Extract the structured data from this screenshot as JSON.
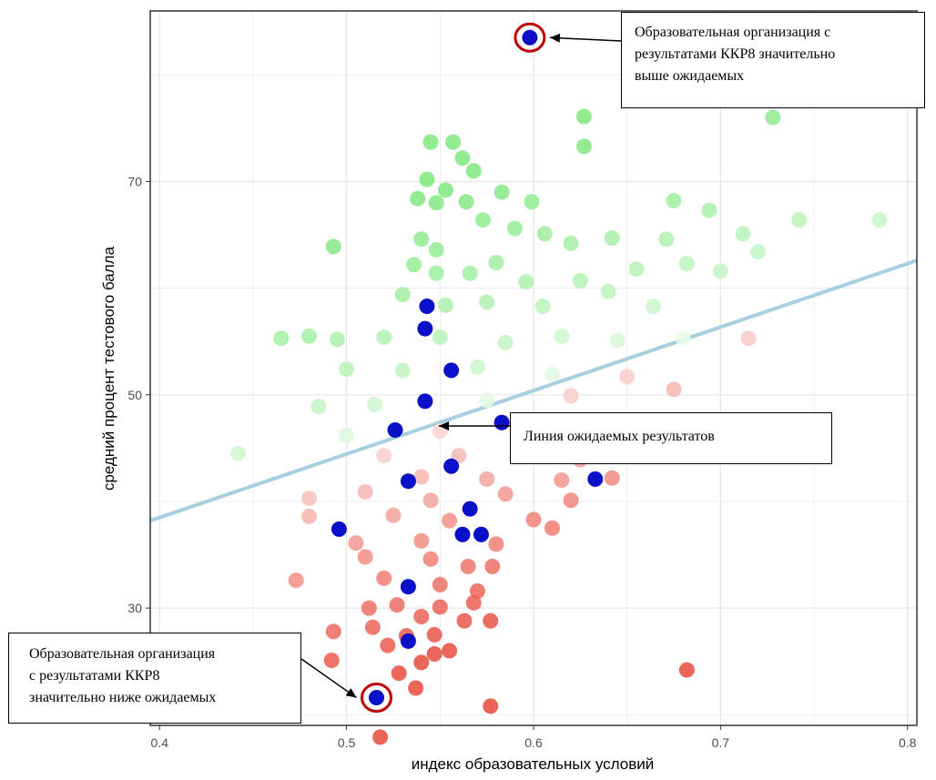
{
  "chart_data": {
    "type": "scatter",
    "xlabel": "индекс образовательных условий",
    "ylabel": "средний процент тестового балла",
    "xlim": [
      0.395,
      0.805
    ],
    "ylim": [
      19,
      86
    ],
    "x_ticks": [
      0.4,
      0.5,
      0.6,
      0.7,
      0.8
    ],
    "x_tick_labels": [
      "0.4",
      "0.5",
      "0.6",
      "0.7",
      "0.8"
    ],
    "y_ticks": [
      30,
      50,
      70
    ],
    "y_tick_labels": [
      "30",
      "50",
      "70"
    ],
    "grid": true,
    "trend_line": {
      "x": [
        0.395,
        0.805
      ],
      "y": [
        38.2,
        62.6
      ],
      "color": "#a8cfe0"
    },
    "colors": {
      "high": "#7ee87e",
      "low": "#e84a3c",
      "mid": "#ffffff",
      "highlight": "#0a10c8",
      "circle": "#c00000",
      "panel_border": "#333333",
      "grid": "#e6e6e6"
    },
    "highlighted_points": [
      {
        "x": 0.598,
        "y": 83.5
      },
      {
        "x": 0.543,
        "y": 58.3
      },
      {
        "x": 0.542,
        "y": 56.2
      },
      {
        "x": 0.556,
        "y": 52.3
      },
      {
        "x": 0.542,
        "y": 49.4
      },
      {
        "x": 0.526,
        "y": 46.7
      },
      {
        "x": 0.583,
        "y": 47.4
      },
      {
        "x": 0.556,
        "y": 43.3
      },
      {
        "x": 0.533,
        "y": 41.9
      },
      {
        "x": 0.633,
        "y": 42.1
      },
      {
        "x": 0.566,
        "y": 39.3
      },
      {
        "x": 0.496,
        "y": 37.4
      },
      {
        "x": 0.562,
        "y": 36.9
      },
      {
        "x": 0.572,
        "y": 36.9
      },
      {
        "x": 0.533,
        "y": 32.0
      },
      {
        "x": 0.533,
        "y": 26.9
      },
      {
        "x": 0.516,
        "y": 21.6
      }
    ],
    "points": [
      {
        "x": 0.598,
        "y": 83.5,
        "y2": 0
      },
      {
        "x": 0.627,
        "y": 76.1
      },
      {
        "x": 0.627,
        "y": 73.3
      },
      {
        "x": 0.728,
        "y": 76.0
      },
      {
        "x": 0.545,
        "y": 73.7
      },
      {
        "x": 0.557,
        "y": 73.7
      },
      {
        "x": 0.562,
        "y": 72.2
      },
      {
        "x": 0.568,
        "y": 71.0
      },
      {
        "x": 0.543,
        "y": 70.2
      },
      {
        "x": 0.553,
        "y": 69.2
      },
      {
        "x": 0.538,
        "y": 68.4
      },
      {
        "x": 0.548,
        "y": 68.0
      },
      {
        "x": 0.564,
        "y": 68.1
      },
      {
        "x": 0.583,
        "y": 69.0
      },
      {
        "x": 0.599,
        "y": 68.1
      },
      {
        "x": 0.675,
        "y": 68.2
      },
      {
        "x": 0.694,
        "y": 67.3
      },
      {
        "x": 0.785,
        "y": 66.4
      },
      {
        "x": 0.573,
        "y": 66.4
      },
      {
        "x": 0.59,
        "y": 65.6
      },
      {
        "x": 0.606,
        "y": 65.1
      },
      {
        "x": 0.62,
        "y": 64.2
      },
      {
        "x": 0.54,
        "y": 64.6
      },
      {
        "x": 0.548,
        "y": 63.6
      },
      {
        "x": 0.493,
        "y": 63.9
      },
      {
        "x": 0.642,
        "y": 64.7
      },
      {
        "x": 0.671,
        "y": 64.6
      },
      {
        "x": 0.712,
        "y": 65.1
      },
      {
        "x": 0.742,
        "y": 66.4
      },
      {
        "x": 0.72,
        "y": 63.4
      },
      {
        "x": 0.58,
        "y": 62.4
      },
      {
        "x": 0.536,
        "y": 62.2
      },
      {
        "x": 0.548,
        "y": 61.4
      },
      {
        "x": 0.566,
        "y": 61.4
      },
      {
        "x": 0.596,
        "y": 60.6
      },
      {
        "x": 0.625,
        "y": 60.7
      },
      {
        "x": 0.655,
        "y": 61.8
      },
      {
        "x": 0.682,
        "y": 62.3
      },
      {
        "x": 0.7,
        "y": 61.6
      },
      {
        "x": 0.53,
        "y": 59.4
      },
      {
        "x": 0.553,
        "y": 58.4
      },
      {
        "x": 0.575,
        "y": 58.7
      },
      {
        "x": 0.605,
        "y": 58.3
      },
      {
        "x": 0.64,
        "y": 59.7
      },
      {
        "x": 0.664,
        "y": 58.3
      },
      {
        "x": 0.465,
        "y": 55.3
      },
      {
        "x": 0.48,
        "y": 55.5
      },
      {
        "x": 0.495,
        "y": 55.2
      },
      {
        "x": 0.52,
        "y": 55.4
      },
      {
        "x": 0.55,
        "y": 55.4
      },
      {
        "x": 0.585,
        "y": 54.9
      },
      {
        "x": 0.615,
        "y": 55.5
      },
      {
        "x": 0.645,
        "y": 55.1
      },
      {
        "x": 0.68,
        "y": 55.3
      },
      {
        "x": 0.715,
        "y": 55.3
      },
      {
        "x": 0.5,
        "y": 52.4
      },
      {
        "x": 0.53,
        "y": 52.3
      },
      {
        "x": 0.57,
        "y": 52.6
      },
      {
        "x": 0.61,
        "y": 51.9
      },
      {
        "x": 0.65,
        "y": 51.7
      },
      {
        "x": 0.485,
        "y": 48.9
      },
      {
        "x": 0.515,
        "y": 49.1
      },
      {
        "x": 0.575,
        "y": 49.5
      },
      {
        "x": 0.62,
        "y": 49.9
      },
      {
        "x": 0.675,
        "y": 50.5
      },
      {
        "x": 0.442,
        "y": 44.5
      },
      {
        "x": 0.5,
        "y": 46.2
      },
      {
        "x": 0.55,
        "y": 46.6
      },
      {
        "x": 0.6,
        "y": 46.9
      },
      {
        "x": 0.64,
        "y": 45.7
      },
      {
        "x": 0.52,
        "y": 44.3
      },
      {
        "x": 0.56,
        "y": 44.3
      },
      {
        "x": 0.595,
        "y": 44.5
      },
      {
        "x": 0.625,
        "y": 43.9
      },
      {
        "x": 0.54,
        "y": 42.3
      },
      {
        "x": 0.575,
        "y": 42.1
      },
      {
        "x": 0.615,
        "y": 42.0
      },
      {
        "x": 0.642,
        "y": 42.2
      },
      {
        "x": 0.48,
        "y": 40.3
      },
      {
        "x": 0.51,
        "y": 40.9
      },
      {
        "x": 0.545,
        "y": 40.1
      },
      {
        "x": 0.585,
        "y": 40.7
      },
      {
        "x": 0.62,
        "y": 40.1
      },
      {
        "x": 0.48,
        "y": 38.6
      },
      {
        "x": 0.525,
        "y": 38.7
      },
      {
        "x": 0.555,
        "y": 38.2
      },
      {
        "x": 0.6,
        "y": 38.3
      },
      {
        "x": 0.505,
        "y": 36.1
      },
      {
        "x": 0.54,
        "y": 36.3
      },
      {
        "x": 0.58,
        "y": 36.0
      },
      {
        "x": 0.61,
        "y": 37.5
      },
      {
        "x": 0.51,
        "y": 34.8
      },
      {
        "x": 0.545,
        "y": 34.6
      },
      {
        "x": 0.565,
        "y": 33.9
      },
      {
        "x": 0.578,
        "y": 33.9
      },
      {
        "x": 0.473,
        "y": 32.6
      },
      {
        "x": 0.52,
        "y": 32.8
      },
      {
        "x": 0.55,
        "y": 32.2
      },
      {
        "x": 0.57,
        "y": 31.6
      },
      {
        "x": 0.527,
        "y": 30.3
      },
      {
        "x": 0.55,
        "y": 30.1
      },
      {
        "x": 0.568,
        "y": 30.5
      },
      {
        "x": 0.512,
        "y": 30.0
      },
      {
        "x": 0.54,
        "y": 29.2
      },
      {
        "x": 0.563,
        "y": 28.8
      },
      {
        "x": 0.577,
        "y": 28.8
      },
      {
        "x": 0.493,
        "y": 27.8
      },
      {
        "x": 0.514,
        "y": 28.2
      },
      {
        "x": 0.532,
        "y": 27.4
      },
      {
        "x": 0.547,
        "y": 27.5
      },
      {
        "x": 0.522,
        "y": 26.5
      },
      {
        "x": 0.555,
        "y": 26.0
      },
      {
        "x": 0.492,
        "y": 25.1
      },
      {
        "x": 0.547,
        "y": 25.7
      },
      {
        "x": 0.54,
        "y": 24.9
      },
      {
        "x": 0.528,
        "y": 23.9
      },
      {
        "x": 0.537,
        "y": 22.5
      },
      {
        "x": 0.682,
        "y": 24.2
      },
      {
        "x": 0.577,
        "y": 20.8
      },
      {
        "x": 0.518,
        "y": 17.9
      }
    ]
  },
  "callouts": {
    "top": {
      "lines": [
        "Образовательная организация с",
        "результатами ККР8 значительно",
        "выше ожидаемых"
      ]
    },
    "middle": {
      "lines": [
        "Линия ожидаемых результатов"
      ]
    },
    "bottom": {
      "lines": [
        "Образовательная организация",
        "с результатами ККР8",
        "значительно ниже ожидаемых"
      ]
    }
  }
}
